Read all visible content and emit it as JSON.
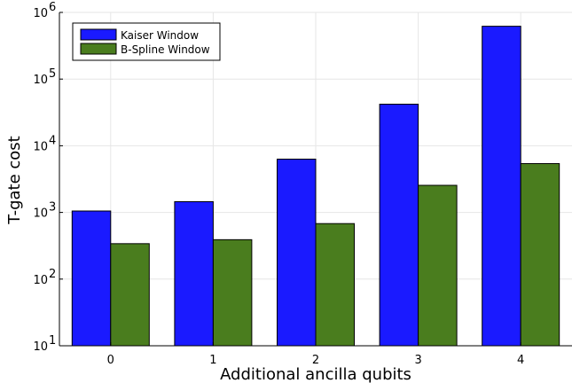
{
  "chart_data": {
    "type": "bar",
    "title": "",
    "xlabel": "Additional ancilla qubits",
    "ylabel": "T-gate cost",
    "yscale": "log",
    "ylim": [
      10,
      1000000
    ],
    "categories": [
      "0",
      "1",
      "2",
      "3",
      "4"
    ],
    "series": [
      {
        "name": "Kaiser Window",
        "color": "#1a1aff",
        "values": [
          1050,
          1450,
          6300,
          42000,
          620000
        ]
      },
      {
        "name": "B-Spline Window",
        "color": "#4a7d1e",
        "values": [
          340,
          390,
          680,
          2550,
          5400
        ]
      }
    ],
    "yticks": [
      {
        "value": 10,
        "base": "10",
        "exp": "1"
      },
      {
        "value": 100,
        "base": "10",
        "exp": "2"
      },
      {
        "value": 1000,
        "base": "10",
        "exp": "3"
      },
      {
        "value": 10000,
        "base": "10",
        "exp": "4"
      },
      {
        "value": 100000,
        "base": "10",
        "exp": "5"
      },
      {
        "value": 1000000,
        "base": "10",
        "exp": "6"
      }
    ],
    "grid": true,
    "legend_position": "top-left"
  }
}
